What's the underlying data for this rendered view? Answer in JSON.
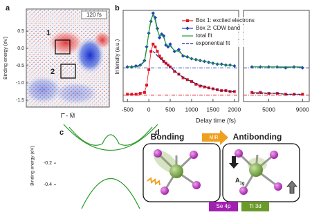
{
  "panel_labels": [
    "a",
    "b",
    "c",
    "d"
  ],
  "panel_a": {
    "time_label": "120 fs",
    "box_labels": [
      "1",
      "2"
    ],
    "ylabel": "Binding energy (eV)",
    "xlabel": "Γ̄ - M̄",
    "ylim": [
      -1.7,
      1.14
    ],
    "yticks": [
      0.5,
      {
        "value": 0,
        "label": "0.0"
      },
      -0.5,
      {
        "value": -1,
        "label": "-1.0"
      },
      -1.5
    ]
  },
  "panel_c": {
    "ylabel": "Binding energy (eV)",
    "ylim": [
      -0.61,
      0.16
    ],
    "yticks": [
      -0.2,
      -0.4
    ]
  },
  "panel_d": {
    "left_title": "Bonding",
    "arrow_label": "MIR",
    "right_title": "Antibonding",
    "mode_symbol": "A",
    "mode_subscript": "1g",
    "legend": [
      "Se 4p",
      "Ti 3d"
    ]
  },
  "chart_data": {
    "type": "line",
    "xlabel": "Delay time (fs)",
    "ylabel": "Intensity (a.u.)",
    "xlim": [
      [
        -600,
        2100
      ],
      [
        2000,
        9800
      ]
    ],
    "xticks": [
      [
        -500,
        0,
        500,
        1000,
        1500,
        2000
      ],
      [
        5000,
        9000
      ]
    ],
    "ylim": [
      0,
      1
    ],
    "x": [
      -500,
      -400,
      -300,
      -200,
      -100,
      -50,
      0,
      50,
      100,
      150,
      200,
      250,
      300,
      350,
      400,
      450,
      500,
      600,
      700,
      800,
      900,
      1000,
      1100,
      1200,
      1300,
      1400,
      1500,
      1600,
      1700,
      1800,
      1900,
      2000,
      3000,
      4000,
      5000,
      6000,
      7000,
      8000,
      9000
    ],
    "series": [
      {
        "name": "Box 1: excited electrons",
        "color": "#e0141e",
        "marker": "square",
        "dash": null,
        "values": [
          0.08,
          0.08,
          0.08,
          0.09,
          0.1,
          0.18,
          0.35,
          0.55,
          0.63,
          0.6,
          0.55,
          0.5,
          0.47,
          0.44,
          0.42,
          0.4,
          0.38,
          0.33,
          0.3,
          0.26,
          0.24,
          0.22,
          0.19,
          0.17,
          0.16,
          0.15,
          0.14,
          0.13,
          0.12,
          0.12,
          0.11,
          0.11,
          0.1,
          0.1,
          0.09,
          0.09,
          0.08,
          0.08,
          0.08
        ]
      },
      {
        "name": "Box 2: CDW band",
        "color": "#1f3fbf",
        "marker": "diamond",
        "dash": null,
        "values": [
          0.38,
          0.38,
          0.39,
          0.4,
          0.45,
          0.6,
          0.75,
          0.88,
          0.97,
          0.92,
          0.8,
          0.7,
          0.74,
          0.72,
          0.62,
          0.6,
          0.63,
          0.55,
          0.57,
          0.5,
          0.49,
          0.47,
          0.46,
          0.45,
          0.44,
          0.43,
          0.42,
          0.41,
          0.41,
          0.4,
          0.4,
          0.39,
          0.38,
          0.38,
          0.38,
          0.38,
          0.37,
          0.38,
          0.37
        ]
      },
      {
        "name": "total fit",
        "color": "#1a9a2a",
        "marker": null,
        "dash": null,
        "values": [
          0.38,
          0.38,
          0.38,
          0.39,
          0.44,
          0.58,
          0.76,
          0.9,
          0.95,
          0.89,
          0.78,
          0.72,
          0.73,
          0.7,
          0.63,
          0.61,
          0.61,
          0.56,
          0.55,
          0.51,
          0.49,
          0.47,
          0.46,
          0.45,
          0.44,
          0.43,
          0.42,
          0.41,
          0.41,
          0.4,
          0.4,
          0.39,
          0.38,
          0.38,
          0.38,
          0.38,
          0.38,
          0.38,
          0.38
        ]
      },
      {
        "name": "exponential fit",
        "color": "#1a237e",
        "marker": null,
        "dash": "4 2",
        "values": [
          null,
          null,
          null,
          null,
          null,
          null,
          null,
          null,
          0.55,
          0.53,
          0.5,
          0.48,
          0.46,
          0.44,
          0.42,
          0.4,
          0.38,
          0.34,
          0.3,
          0.27,
          0.24,
          0.22,
          0.2,
          0.18,
          0.17,
          0.15,
          0.14,
          0.13,
          0.12,
          0.12,
          0.11,
          0.11,
          0.09,
          0.09,
          0.09,
          0.09,
          0.08,
          0.08,
          0.08
        ]
      }
    ],
    "hlines": [
      {
        "value": 0.37,
        "color": "#1f3fbf"
      },
      {
        "value": 0.07,
        "color": "#e0141e"
      }
    ]
  }
}
